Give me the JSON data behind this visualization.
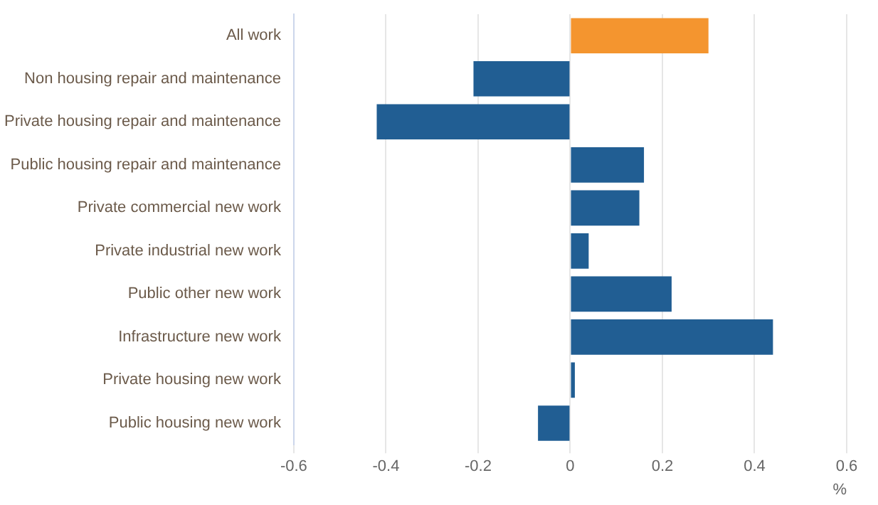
{
  "chart_data": {
    "type": "bar",
    "orientation": "horizontal",
    "categories": [
      "All work",
      "Non housing repair and maintenance",
      "Private housing repair and maintenance",
      "Public housing repair and maintenance",
      "Private commercial new work",
      "Private industrial new work",
      "Public other new work",
      "Infrastructure new work",
      "Private housing new work",
      "Public housing new work"
    ],
    "values": [
      0.3,
      -0.21,
      -0.42,
      0.16,
      0.15,
      0.04,
      0.22,
      0.44,
      0.01,
      -0.07
    ],
    "colors": [
      "#f4952f",
      "#215e93",
      "#215e93",
      "#215e93",
      "#215e93",
      "#215e93",
      "#215e93",
      "#215e93",
      "#215e93",
      "#215e93"
    ],
    "xlabel": "%",
    "xlim": [
      -0.6,
      0.6
    ],
    "xticks": [
      -0.6,
      -0.4,
      -0.2,
      0,
      0.2,
      0.4,
      0.6
    ],
    "grid": "x",
    "legend": false
  }
}
